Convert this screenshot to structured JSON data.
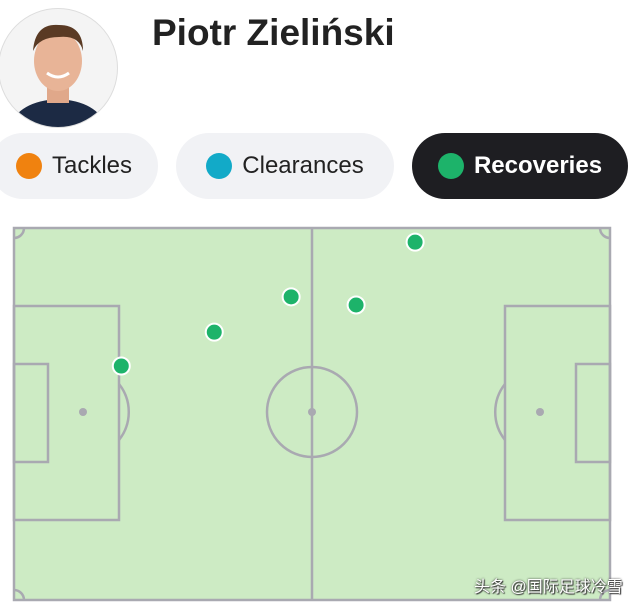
{
  "player": {
    "name": "Piotr Zieliński"
  },
  "filters": [
    {
      "label": "Tackles",
      "color": "#f0820f",
      "active": false
    },
    {
      "label": "Clearances",
      "color": "#12aac8",
      "active": false
    },
    {
      "label": "Recoveries",
      "color": "#1db36a",
      "active": true
    }
  ],
  "pitch": {
    "color": "#cdebc4",
    "line_color": "#a9a9b1",
    "dot_color": "#1db36a",
    "events": [
      {
        "x": 67.3,
        "y": 3.8
      },
      {
        "x": 46.5,
        "y": 18.5
      },
      {
        "x": 57.4,
        "y": 20.7
      },
      {
        "x": 33.6,
        "y": 28.0
      },
      {
        "x": 18.0,
        "y": 37.1
      }
    ]
  },
  "watermark": "头条 @国际足球冷雪"
}
